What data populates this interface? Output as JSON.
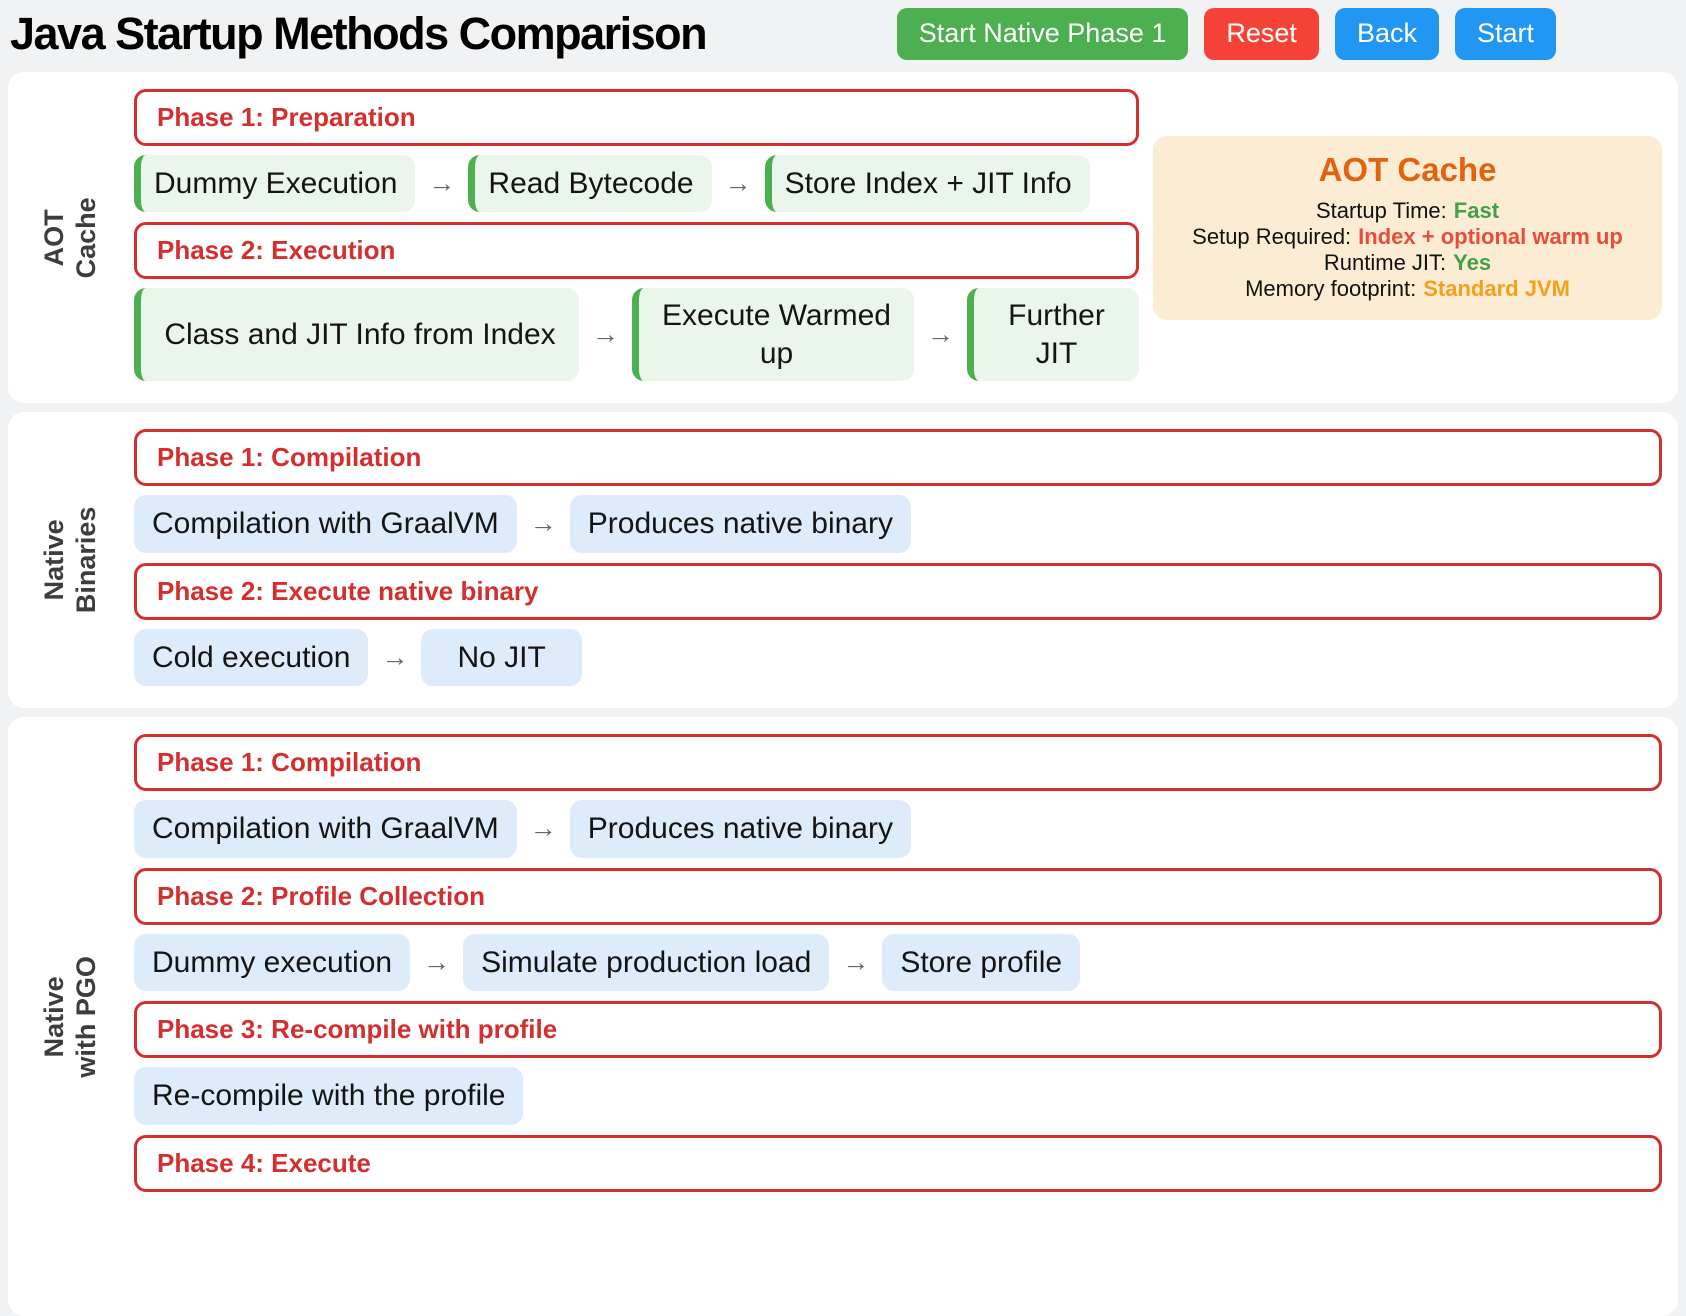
{
  "glyphs": {
    "arrow": "→"
  },
  "colors": {
    "button_green": "#4caf50",
    "button_red": "#f44336",
    "button_blue": "#2196f3",
    "phase_red": "#d32f2f",
    "step_green_border": "#4caf50",
    "step_green_bg": "#eaf6eb",
    "step_blue_bg": "#ddebfa",
    "panel_bg": "#fcecd4",
    "panel_title_orange": "#e2620e",
    "section_label_gray": "#3d3d3d"
  },
  "header": {
    "title": "Java Startup Methods Comparison",
    "buttons": {
      "start_native_phase": {
        "label": "Start Native Phase 1"
      },
      "reset": {
        "label": "Reset"
      },
      "back": {
        "label": "Back"
      },
      "start": {
        "label": "Start"
      }
    }
  },
  "sections": [
    {
      "label": "AOT Cache",
      "rows": [
        {
          "type": "phase",
          "label": "Phase 1: Preparation"
        },
        {
          "type": "steps",
          "style": "green",
          "steps": [
            "Dummy Execution",
            "Read Bytecode",
            "Store Index + JIT Info"
          ]
        },
        {
          "type": "phase",
          "label": "Phase 2: Execution"
        },
        {
          "type": "steps",
          "style": "green",
          "steps": [
            "Class and JIT Info from Index",
            "Execute Warmed up",
            "Further JIT"
          ]
        }
      ],
      "info_panel": {
        "title": "AOT Cache",
        "items": [
          {
            "label": "Startup Time:",
            "value": "Fast",
            "color": "#43a047"
          },
          {
            "label": "Setup Required:",
            "value": "Index + optional warm up",
            "color": "#e74c3c"
          },
          {
            "label": "Runtime JIT:",
            "value": "Yes",
            "color": "#43a047"
          },
          {
            "label": "Memory footprint:",
            "value": "Standard JVM",
            "color": "#f5a01d"
          }
        ]
      }
    },
    {
      "label": "Native Binaries",
      "rows": [
        {
          "type": "phase",
          "label": "Phase 1: Compilation"
        },
        {
          "type": "steps",
          "style": "blue",
          "steps": [
            "Compilation with GraalVM",
            "Produces native binary"
          ]
        },
        {
          "type": "phase",
          "label": "Phase 2: Execute native binary"
        },
        {
          "type": "steps",
          "style": "blue",
          "steps": [
            "Cold execution",
            "No JIT"
          ]
        }
      ]
    },
    {
      "label": "Native with PGO",
      "rows": [
        {
          "type": "phase",
          "label": "Phase 1: Compilation"
        },
        {
          "type": "steps",
          "style": "blue",
          "steps": [
            "Compilation with GraalVM",
            "Produces native binary"
          ]
        },
        {
          "type": "phase",
          "label": "Phase 2: Profile Collection"
        },
        {
          "type": "steps",
          "style": "blue",
          "steps": [
            "Dummy execution",
            "Simulate production load",
            "Store profile"
          ]
        },
        {
          "type": "phase",
          "label": "Phase 3: Re-compile with profile"
        },
        {
          "type": "steps",
          "style": "blue",
          "steps": [
            "Re-compile with the profile"
          ]
        },
        {
          "type": "phase",
          "label": "Phase 4: Execute"
        }
      ]
    }
  ]
}
